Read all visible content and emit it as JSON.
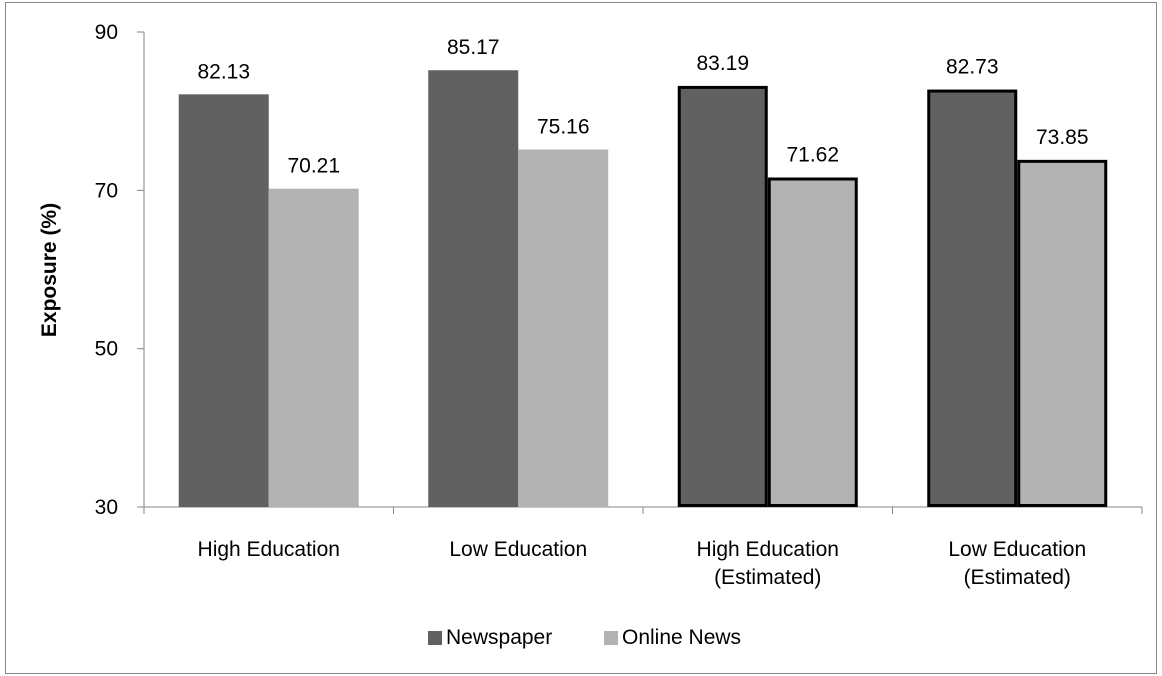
{
  "chart_data": {
    "type": "bar",
    "ylabel": "Exposure (%)",
    "ylim": [
      30,
      90
    ],
    "yticks": [
      30,
      50,
      70,
      90
    ],
    "categories": [
      [
        "High Education"
      ],
      [
        "Low Education"
      ],
      [
        "High Education",
        "(Estimated)"
      ],
      [
        "Low Education",
        "(Estimated)"
      ]
    ],
    "estimated_flags": [
      false,
      false,
      true,
      true
    ],
    "series": [
      {
        "name": "Newspaper",
        "color": "#616161",
        "values": [
          82.13,
          85.17,
          83.19,
          82.73
        ],
        "labels": [
          "82.13",
          "85.17",
          "83.19",
          "82.73"
        ]
      },
      {
        "name": "Online News",
        "color": "#b3b3b3",
        "values": [
          70.21,
          75.16,
          71.62,
          73.85
        ],
        "labels": [
          "70.21",
          "75.16",
          "71.62",
          "73.85"
        ]
      }
    ],
    "legend_position": "bottom",
    "grid": false,
    "axis_color": "#878787",
    "estimated_outline_color": "#000000"
  }
}
